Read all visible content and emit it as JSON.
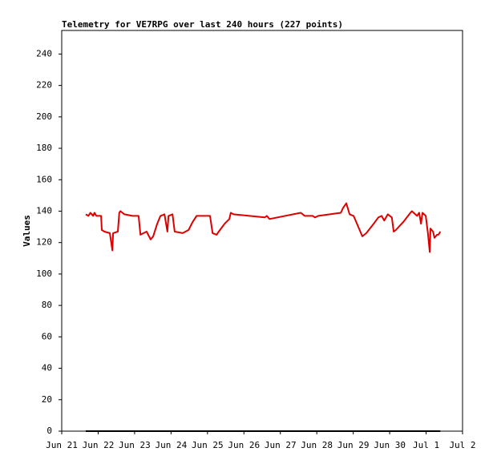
{
  "chart_data": {
    "type": "line",
    "title": "Telemetry for VE7RPG over last 240 hours (227 points)",
    "y_label": "Values",
    "xlim": [
      21,
      32
    ],
    "xticks": [
      {
        "value": 21,
        "label": "Jun 21"
      },
      {
        "value": 22,
        "label": "Jun 22"
      },
      {
        "value": 23,
        "label": "Jun 23"
      },
      {
        "value": 24,
        "label": "Jun 24"
      },
      {
        "value": 25,
        "label": "Jun 25"
      },
      {
        "value": 26,
        "label": "Jun 26"
      },
      {
        "value": 27,
        "label": "Jun 27"
      },
      {
        "value": 28,
        "label": "Jun 28"
      },
      {
        "value": 29,
        "label": "Jun 29"
      },
      {
        "value": 30,
        "label": "Jun 30"
      },
      {
        "value": 31,
        "label": "Jul 1"
      },
      {
        "value": 32,
        "label": "Jul 2"
      }
    ],
    "ylim": [
      0,
      255
    ],
    "yticks": [
      0,
      20,
      40,
      60,
      80,
      100,
      120,
      140,
      160,
      180,
      200,
      220,
      240
    ],
    "grid": false,
    "series": [
      {
        "color": "#000000",
        "x": [
          21.66,
          31.39
        ],
        "values": [
          0,
          0
        ]
      },
      {
        "color": "#dd0000",
        "x": [
          21.66,
          21.73,
          21.79,
          21.86,
          21.9,
          21.95,
          22.08,
          22.1,
          22.17,
          22.32,
          22.39,
          22.41,
          22.54,
          22.58,
          22.61,
          22.72,
          22.94,
          23.11,
          23.16,
          23.33,
          23.44,
          23.51,
          23.62,
          23.71,
          23.82,
          23.9,
          23.93,
          24.04,
          24.1,
          24.32,
          24.48,
          24.59,
          24.7,
          25.07,
          25.14,
          25.25,
          25.31,
          25.47,
          25.6,
          25.64,
          25.71,
          26.57,
          26.63,
          26.7,
          27.56,
          27.67,
          27.89,
          27.95,
          28.04,
          28.66,
          28.72,
          28.81,
          28.9,
          29.01,
          29.25,
          29.36,
          29.56,
          29.69,
          29.78,
          29.85,
          29.95,
          30.06,
          30.11,
          30.17,
          30.37,
          30.57,
          30.61,
          30.75,
          30.81,
          30.86,
          30.9,
          30.99,
          31.05,
          31.1,
          31.12,
          31.19,
          31.23,
          31.3,
          31.34,
          31.39
        ],
        "values": [
          138,
          137,
          139,
          137,
          139,
          137,
          137,
          128,
          127,
          126,
          115,
          126,
          127,
          139,
          140,
          138,
          137,
          137,
          125,
          127,
          122,
          124,
          132,
          137,
          138,
          127,
          137,
          138,
          127,
          126,
          128,
          133,
          137,
          137,
          126,
          125,
          127,
          132,
          135,
          139,
          138,
          136,
          137,
          135,
          139,
          137,
          137,
          136,
          137,
          139,
          142,
          145,
          138,
          137,
          124,
          126,
          132,
          136,
          137,
          134,
          138,
          136,
          127,
          128,
          133,
          139,
          140,
          137,
          139,
          132,
          139,
          137,
          126,
          114,
          129,
          127,
          123,
          125,
          125,
          127
        ]
      }
    ]
  }
}
